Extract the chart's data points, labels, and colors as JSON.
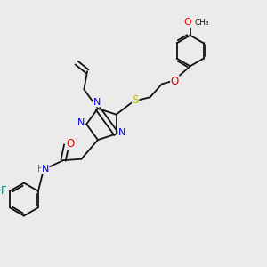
{
  "background_color": "#ebebeb",
  "atom_colors": {
    "N": "#0000ee",
    "O": "#ee0000",
    "S": "#bbbb00",
    "F": "#008888",
    "H": "#666666",
    "C": "#111111"
  },
  "bond_color": "#111111",
  "figsize": [
    3.0,
    3.0
  ],
  "dpi": 100,
  "lw": 1.3
}
